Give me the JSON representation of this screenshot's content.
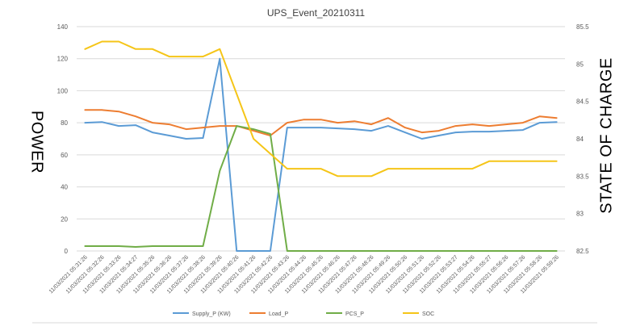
{
  "chart_data": {
    "type": "line",
    "title": "UPS_Event_20210311",
    "ylabel": "POWER",
    "y2label": "STATE OF CHARGE",
    "ylim": [
      0,
      140
    ],
    "yticks": [
      0,
      20,
      40,
      60,
      80,
      100,
      120,
      140
    ],
    "y2lim": [
      82.5,
      85.5
    ],
    "y2ticks": [
      "82.5",
      "83",
      "83.5",
      "84",
      "84.5",
      "85",
      "85.5"
    ],
    "grid": "horizontal",
    "legend_position": "bottom",
    "categories": [
      "11/03/2021 05:31:26",
      "11/03/2021 05:32:26",
      "11/03/2021 05:33:26",
      "11/03/2021 05:34:27",
      "11/03/2021 05:35:26",
      "11/03/2021 05:36:26",
      "11/03/2021 05:37:26",
      "11/03/2021 05:38:26",
      "11/03/2021 05:39:26",
      "11/03/2021 05:40:26",
      "11/03/2021 05:41:26",
      "11/03/2021 05:42:26",
      "11/03/2021 05:43:26",
      "11/03/2021 05:44:26",
      "11/03/2021 05:45:26",
      "11/03/2021 05:46:26",
      "11/03/2021 05:47:26",
      "11/03/2021 05:48:26",
      "11/03/2021 05:49:26",
      "11/03/2021 05:50:26",
      "11/03/2021 05:51:26",
      "11/03/2021 05:52:26",
      "11/03/2021 05:53:27",
      "11/03/2021 05:54:26",
      "11/03/2021 05:55:27",
      "11/03/2021 05:56:26",
      "11/03/2021 05:57:26",
      "11/03/2021 05:58:26",
      "11/03/2021 05:59:26"
    ],
    "series": [
      {
        "name": "Supply_P (KW)",
        "axis": "left",
        "color": "#5B9BD5",
        "values": [
          80,
          80.5,
          78,
          78.5,
          74,
          72,
          70,
          70.5,
          120,
          0,
          0,
          0,
          77,
          77,
          77,
          76.5,
          76,
          75,
          78,
          74,
          70,
          72,
          74,
          74.5,
          74.5,
          75,
          75.5,
          80,
          80.5
        ]
      },
      {
        "name": "Load_P",
        "axis": "left",
        "color": "#ED7D31",
        "values": [
          88,
          88,
          87,
          84,
          80,
          79,
          76,
          77,
          78,
          78,
          75,
          72,
          80,
          82,
          82,
          80,
          81,
          79,
          83,
          77,
          74,
          75,
          78,
          79,
          78,
          79,
          80,
          84,
          83
        ]
      },
      {
        "name": "PCS_P",
        "axis": "left",
        "color": "#70AD47",
        "values": [
          3,
          3,
          3,
          2.5,
          3,
          3,
          3,
          3,
          50,
          78,
          76,
          73,
          0,
          0,
          0,
          0,
          0,
          0,
          0,
          0,
          0,
          0,
          0,
          0,
          0,
          0,
          0,
          0,
          0
        ]
      },
      {
        "name": "SOC",
        "axis": "right",
        "color": "#F5C518",
        "values": [
          85.2,
          85.3,
          85.3,
          85.2,
          85.2,
          85.1,
          85.1,
          85.1,
          85.2,
          84.6,
          84.0,
          83.8,
          83.6,
          83.6,
          83.6,
          83.5,
          83.5,
          83.5,
          83.6,
          83.6,
          83.6,
          83.6,
          83.6,
          83.6,
          83.7,
          83.7,
          83.7,
          83.7,
          83.7
        ]
      }
    ]
  }
}
